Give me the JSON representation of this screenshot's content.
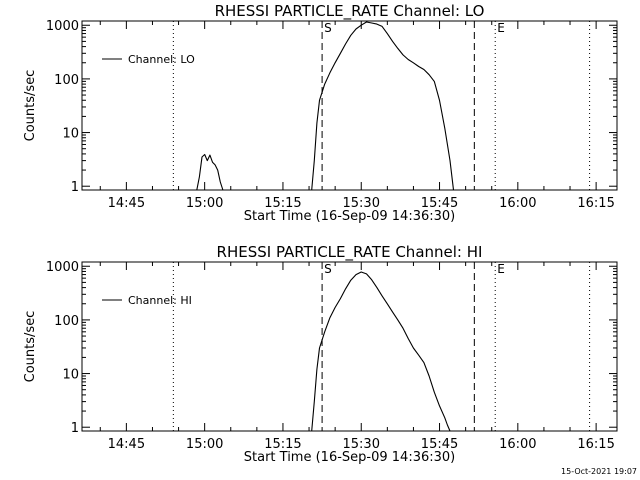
{
  "footer": "15-Oct-2021 19:07",
  "chart_data": [
    {
      "type": "line",
      "title": "RHESSI PARTICLE_RATE Channel: LO",
      "xlabel": "Start Time (16-Sep-09 14:36:30)",
      "ylabel": "Counts/sec",
      "yscale": "log",
      "ylim": [
        0.85,
        1200
      ],
      "xlim": [
        "14:36:30",
        "16:19:00"
      ],
      "x_ticks": [
        "14:45",
        "15:00",
        "15:15",
        "15:30",
        "15:45",
        "16:00",
        "16:15"
      ],
      "y_ticks": [
        "1",
        "10",
        "100",
        "1000"
      ],
      "legend": {
        "label": "Channel: LO",
        "position": "top-left"
      },
      "markers": [
        {
          "time": "14:54:00",
          "label": "",
          "style": "dotted"
        },
        {
          "time": "15:22:30",
          "label": "S",
          "style": "dashed"
        },
        {
          "time": "15:51:40",
          "label": "",
          "style": "dashed"
        },
        {
          "time": "15:55:40",
          "label": "E",
          "style": "dotted"
        },
        {
          "time": "16:13:45",
          "label": "",
          "style": "dotted"
        }
      ],
      "series": [
        {
          "name": "Channel: LO",
          "segments": [
            [
              [
                "14:58:30",
                0.85
              ],
              [
                "14:59:00",
                1.5
              ],
              [
                "14:59:30",
                3.5
              ],
              [
                "15:00:00",
                3.9
              ],
              [
                "15:00:30",
                3.0
              ],
              [
                "15:01:00",
                3.8
              ],
              [
                "15:01:30",
                2.8
              ],
              [
                "15:02:00",
                2.5
              ],
              [
                "15:02:30",
                2.0
              ],
              [
                "15:03:00",
                1.2
              ],
              [
                "15:03:30",
                0.85
              ]
            ],
            [
              [
                "15:20:30",
                0.85
              ],
              [
                "15:21:00",
                3
              ],
              [
                "15:21:30",
                15
              ],
              [
                "15:22:00",
                40
              ],
              [
                "15:23:00",
                80
              ],
              [
                "15:24:00",
                130
              ],
              [
                "15:25:00",
                200
              ],
              [
                "15:26:00",
                300
              ],
              [
                "15:27:00",
                450
              ],
              [
                "15:28:00",
                650
              ],
              [
                "15:29:00",
                850
              ],
              [
                "15:30:00",
                1000
              ],
              [
                "15:31:00",
                1150
              ],
              [
                "15:32:00",
                1100
              ],
              [
                "15:33:00",
                1050
              ],
              [
                "15:34:00",
                950
              ],
              [
                "15:35:00",
                700
              ],
              [
                "15:36:00",
                500
              ],
              [
                "15:37:00",
                370
              ],
              [
                "15:38:00",
                280
              ],
              [
                "15:39:00",
                230
              ],
              [
                "15:40:00",
                200
              ],
              [
                "15:41:00",
                170
              ],
              [
                "15:42:00",
                150
              ],
              [
                "15:43:00",
                120
              ],
              [
                "15:44:00",
                90
              ],
              [
                "15:45:00",
                40
              ],
              [
                "15:46:00",
                12
              ],
              [
                "15:47:00",
                3
              ],
              [
                "15:47:40",
                0.85
              ]
            ]
          ]
        }
      ]
    },
    {
      "type": "line",
      "title": "RHESSI PARTICLE_RATE Channel: HI",
      "xlabel": "Start Time (16-Sep-09 14:36:30)",
      "ylabel": "Counts/sec",
      "yscale": "log",
      "ylim": [
        0.85,
        1200
      ],
      "xlim": [
        "14:36:30",
        "16:19:00"
      ],
      "x_ticks": [
        "14:45",
        "15:00",
        "15:15",
        "15:30",
        "15:45",
        "16:00",
        "16:15"
      ],
      "y_ticks": [
        "1",
        "10",
        "100",
        "1000"
      ],
      "legend": {
        "label": "Channel: HI",
        "position": "top-left"
      },
      "markers": [
        {
          "time": "14:54:00",
          "label": "",
          "style": "dotted"
        },
        {
          "time": "15:22:30",
          "label": "S",
          "style": "dashed"
        },
        {
          "time": "15:51:40",
          "label": "",
          "style": "dashed"
        },
        {
          "time": "15:55:40",
          "label": "E",
          "style": "dotted"
        },
        {
          "time": "16:13:45",
          "label": "",
          "style": "dotted"
        }
      ],
      "series": [
        {
          "name": "Channel: HI",
          "segments": [
            [
              [
                "15:20:30",
                0.85
              ],
              [
                "15:21:00",
                3
              ],
              [
                "15:21:30",
                12
              ],
              [
                "15:22:00",
                30
              ],
              [
                "15:23:00",
                60
              ],
              [
                "15:24:00",
                110
              ],
              [
                "15:25:00",
                170
              ],
              [
                "15:26:00",
                250
              ],
              [
                "15:27:00",
                380
              ],
              [
                "15:28:00",
                550
              ],
              [
                "15:29:00",
                700
              ],
              [
                "15:30:00",
                780
              ],
              [
                "15:31:00",
                720
              ],
              [
                "15:32:00",
                560
              ],
              [
                "15:33:00",
                400
              ],
              [
                "15:34:00",
                280
              ],
              [
                "15:35:00",
                200
              ],
              [
                "15:36:00",
                140
              ],
              [
                "15:37:00",
                100
              ],
              [
                "15:38:00",
                70
              ],
              [
                "15:39:00",
                45
              ],
              [
                "15:40:00",
                30
              ],
              [
                "15:41:00",
                22
              ],
              [
                "15:42:00",
                16
              ],
              [
                "15:43:00",
                9
              ],
              [
                "15:44:00",
                4.5
              ],
              [
                "15:45:00",
                2.5
              ],
              [
                "15:46:00",
                1.5
              ],
              [
                "15:46:30",
                1.1
              ],
              [
                "15:47:00",
                0.85
              ]
            ]
          ]
        }
      ]
    }
  ]
}
